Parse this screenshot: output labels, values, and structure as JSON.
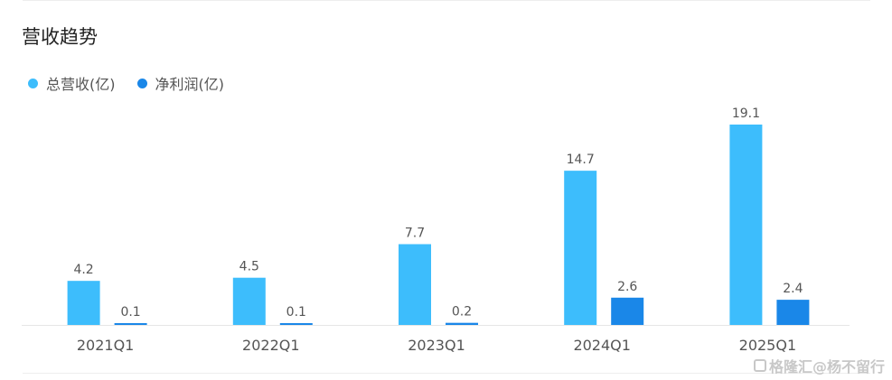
{
  "chart_data": {
    "type": "bar",
    "title": "营收趋势",
    "categories": [
      "2021Q1",
      "2022Q1",
      "2023Q1",
      "2024Q1",
      "2025Q1"
    ],
    "series": [
      {
        "name": "总营收(亿)",
        "color": "#3dbdfc",
        "values": [
          4.2,
          4.5,
          7.7,
          14.7,
          19.1
        ],
        "labels": [
          "4.2",
          "4.5",
          "7.7",
          "14.7",
          "19.1"
        ]
      },
      {
        "name": "净利润(亿)",
        "color": "#1a87e8",
        "values": [
          0.1,
          0.1,
          0.2,
          2.6,
          2.4
        ],
        "labels": [
          "0.1",
          "0.1",
          "0.2",
          "2.6",
          "2.4"
        ]
      }
    ],
    "ylim": [
      0,
      19.1
    ],
    "grid": false,
    "legend_position": "top-left",
    "data_labels": true
  },
  "watermark": "格隆汇@杨不留行"
}
